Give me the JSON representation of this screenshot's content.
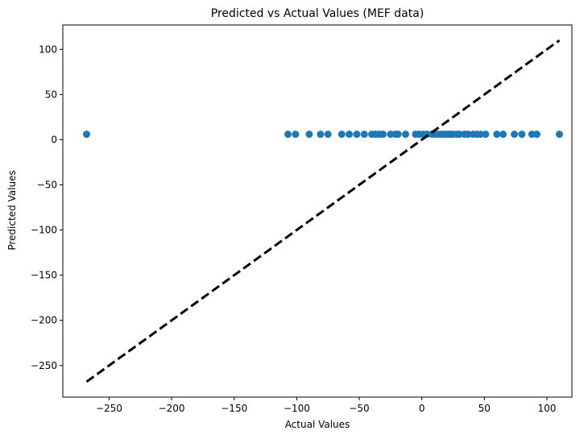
{
  "chart_data": {
    "type": "scatter",
    "title": "Predicted vs Actual Values (MEF data)",
    "xlabel": "Actual Values",
    "ylabel": "Predicted Values",
    "xlim": [
      -287,
      120
    ],
    "ylim": [
      -285,
      127
    ],
    "xticks": [
      -250,
      -200,
      -150,
      -100,
      -50,
      0,
      50,
      100
    ],
    "yticks": [
      -250,
      -200,
      -150,
      -100,
      -50,
      0,
      50,
      100
    ],
    "xtick_labels": [
      "−250",
      "−200",
      "−150",
      "−100",
      "−50",
      "0",
      "50",
      "100"
    ],
    "ytick_labels": [
      "−250",
      "−200",
      "−150",
      "−100",
      "−50",
      "0",
      "50",
      "100"
    ],
    "grid": false,
    "legend": "none",
    "colors": {
      "points": "#1f77b4",
      "reference_line": "#000000"
    },
    "reference_line": {
      "style": "dashed",
      "from": [
        -268,
        -268
      ],
      "to": [
        110,
        110
      ]
    },
    "points": {
      "x": [
        -268,
        -107,
        -101,
        -90,
        -81,
        -75,
        -64,
        -58,
        -52,
        -46,
        -40,
        -37,
        -34,
        -31,
        -25,
        -21,
        -19,
        -13,
        -5,
        -2,
        1,
        4,
        8,
        11,
        13,
        16,
        19,
        21,
        23,
        25,
        28,
        30,
        34,
        37,
        41,
        44,
        47,
        51,
        60,
        65,
        74,
        80,
        88,
        92,
        110
      ],
      "y": [
        6,
        6,
        6,
        6,
        6,
        6,
        6,
        6,
        6,
        6,
        6,
        6,
        6,
        6,
        6,
        6,
        6,
        6,
        6,
        6,
        6,
        6,
        6,
        6,
        6,
        6,
        6,
        6,
        6,
        6,
        6,
        6,
        6,
        6,
        6,
        6,
        6,
        6,
        6,
        6,
        6,
        6,
        6,
        6,
        6
      ]
    }
  }
}
